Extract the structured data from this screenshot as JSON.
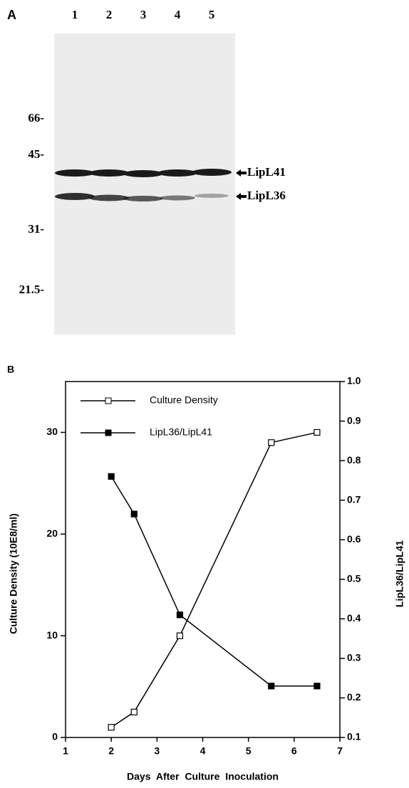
{
  "panel_a": {
    "label": "A",
    "lanes": [
      "1",
      "2",
      "3",
      "4",
      "5"
    ],
    "markers": [
      "66-",
      "45-",
      "31-",
      "21.5-"
    ],
    "bands": [
      "LipL41",
      "LipL36"
    ]
  },
  "chart_data": {
    "type": "line",
    "panel_label": "B",
    "x": [
      2,
      2.5,
      3.5,
      5.5,
      6.5
    ],
    "series": [
      {
        "name": "Culture Density",
        "color": "#000000",
        "marker": "open-square",
        "values": [
          1,
          2.5,
          10,
          29,
          30
        ]
      },
      {
        "name": "LipL36/LipL41",
        "color": "#000000",
        "marker": "filled-square",
        "axis": "y2",
        "values": [
          0.76,
          0.665,
          0.41,
          0.23,
          0.23
        ]
      }
    ],
    "x_label": "Days After Culture Inoculation",
    "y_label": "Culture  Density  (10E8/ml)",
    "y2_label": "LipL36/LipL41",
    "xlim": [
      1,
      7
    ],
    "xticks": [
      1,
      2,
      3,
      4,
      5,
      6,
      7
    ],
    "ylim": [
      0,
      35
    ],
    "yticks": [
      0,
      10,
      20,
      30
    ],
    "y2lim": [
      0.1,
      1
    ],
    "y2ticks": [
      0.1,
      0.2,
      0.3,
      0.4,
      0.5,
      0.6,
      0.7,
      0.8,
      0.9,
      {
        "value": 1,
        "label": "1.0"
      }
    ],
    "legend": "upper-left",
    "grid": false
  }
}
